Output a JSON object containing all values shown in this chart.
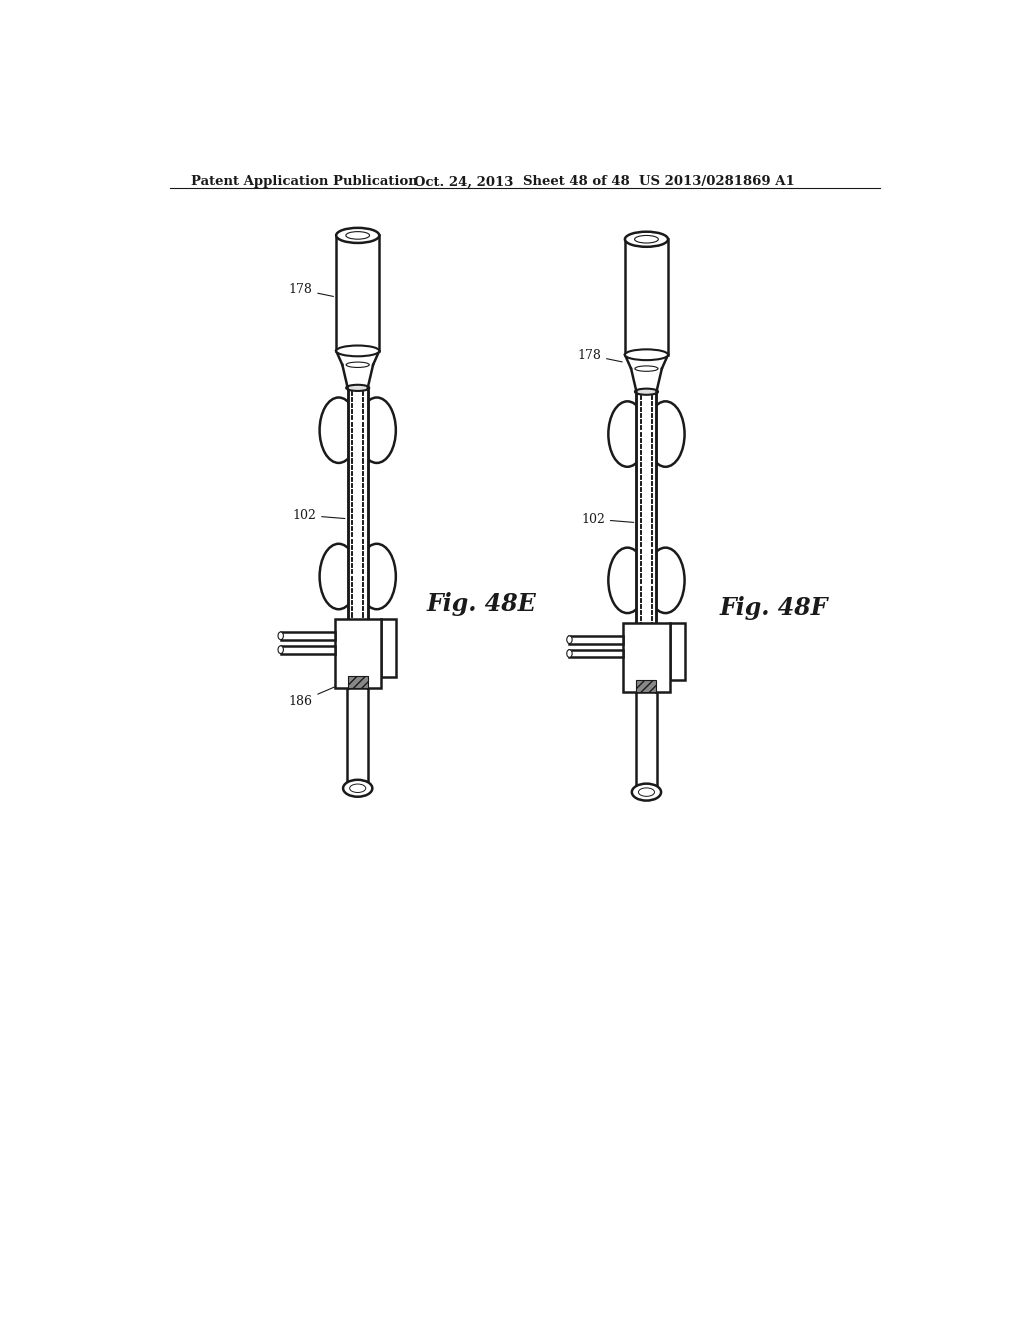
{
  "bg_color": "#ffffff",
  "header_text": "Patent Application Publication",
  "header_date": "Oct. 24, 2013",
  "header_sheet": "Sheet 48 of 48",
  "header_patent": "US 2013/0281869 A1",
  "fig_e_label": "Fig. 48E",
  "fig_f_label": "Fig. 48F",
  "label_178_e": "178",
  "label_102_e": "102",
  "label_186_e": "186",
  "label_178_f": "178",
  "label_102_f": "102",
  "line_color": "#1a1a1a",
  "line_width": 1.8
}
